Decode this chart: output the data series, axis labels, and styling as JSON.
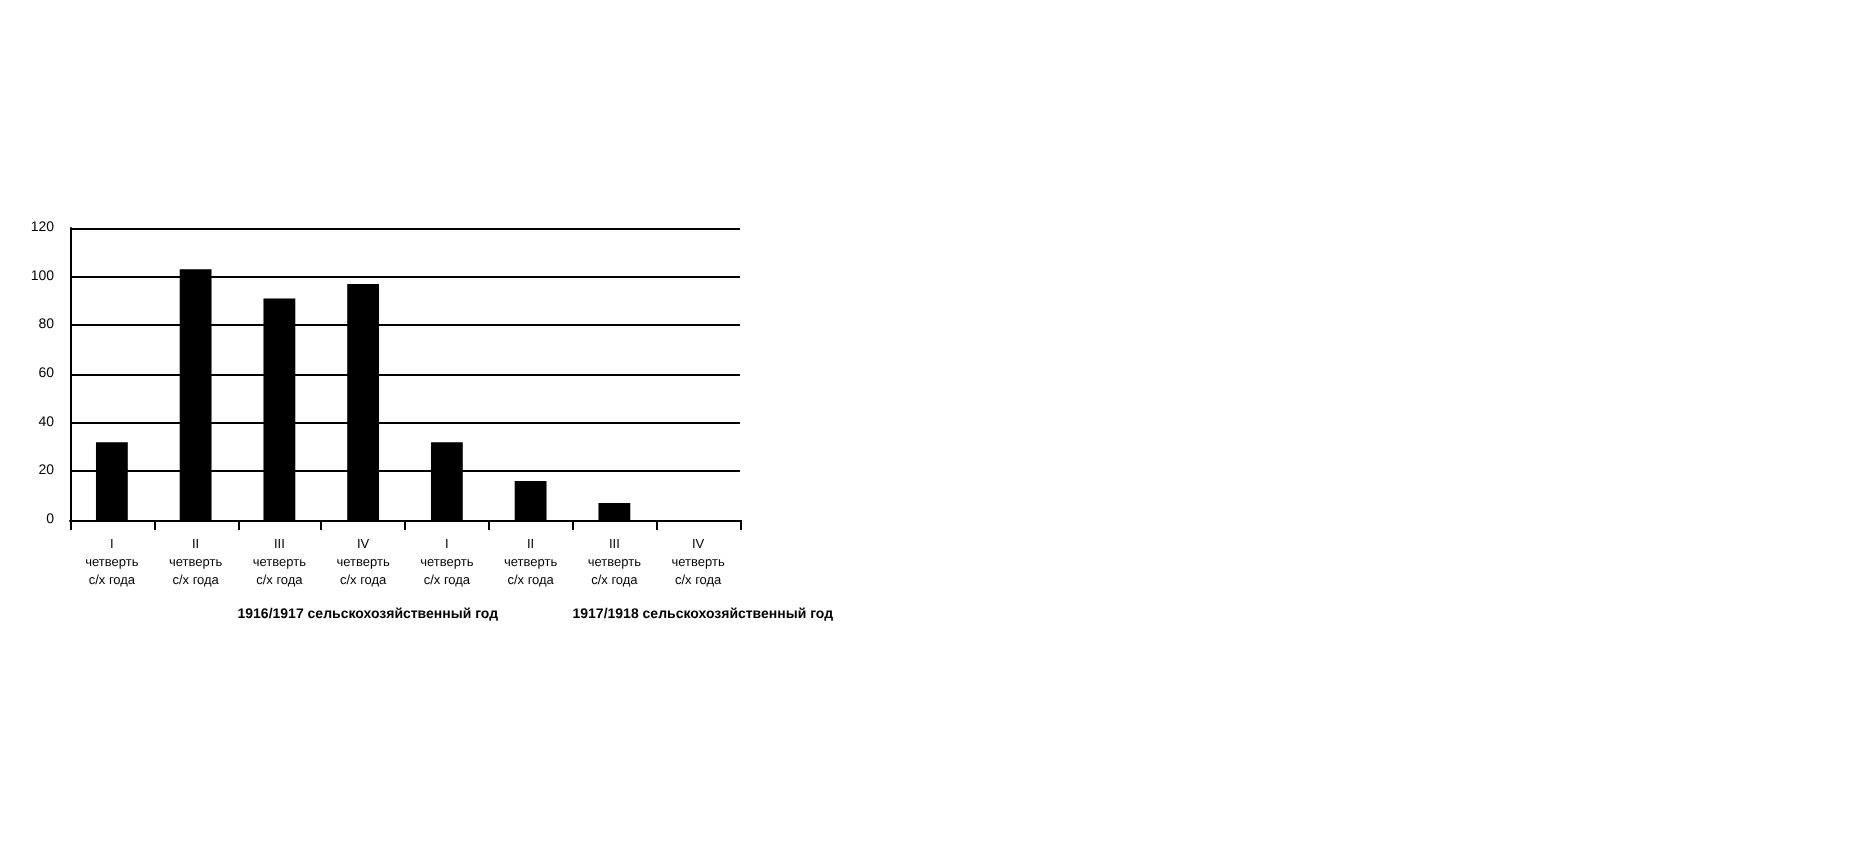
{
  "chart_data": {
    "type": "bar",
    "categories": [
      "I четверть с/х года",
      "II четверть с/х года",
      "III четверть с/х года",
      "IV четверть с/х года",
      "I четверть с/х года",
      "II четверть с/х года",
      "III четверть с/х года",
      "IV четверть с/х года"
    ],
    "values": [
      32,
      103,
      91,
      97,
      32,
      16,
      7,
      0
    ],
    "color": "#000000",
    "ylim": [
      0,
      120
    ],
    "yticks": [
      0,
      20,
      40,
      60,
      80,
      100,
      120
    ],
    "grid": "y",
    "annotations": [
      "1916/1917 сельскохозяйственный год",
      "1917/1918 сельскохозяйственный год"
    ]
  }
}
